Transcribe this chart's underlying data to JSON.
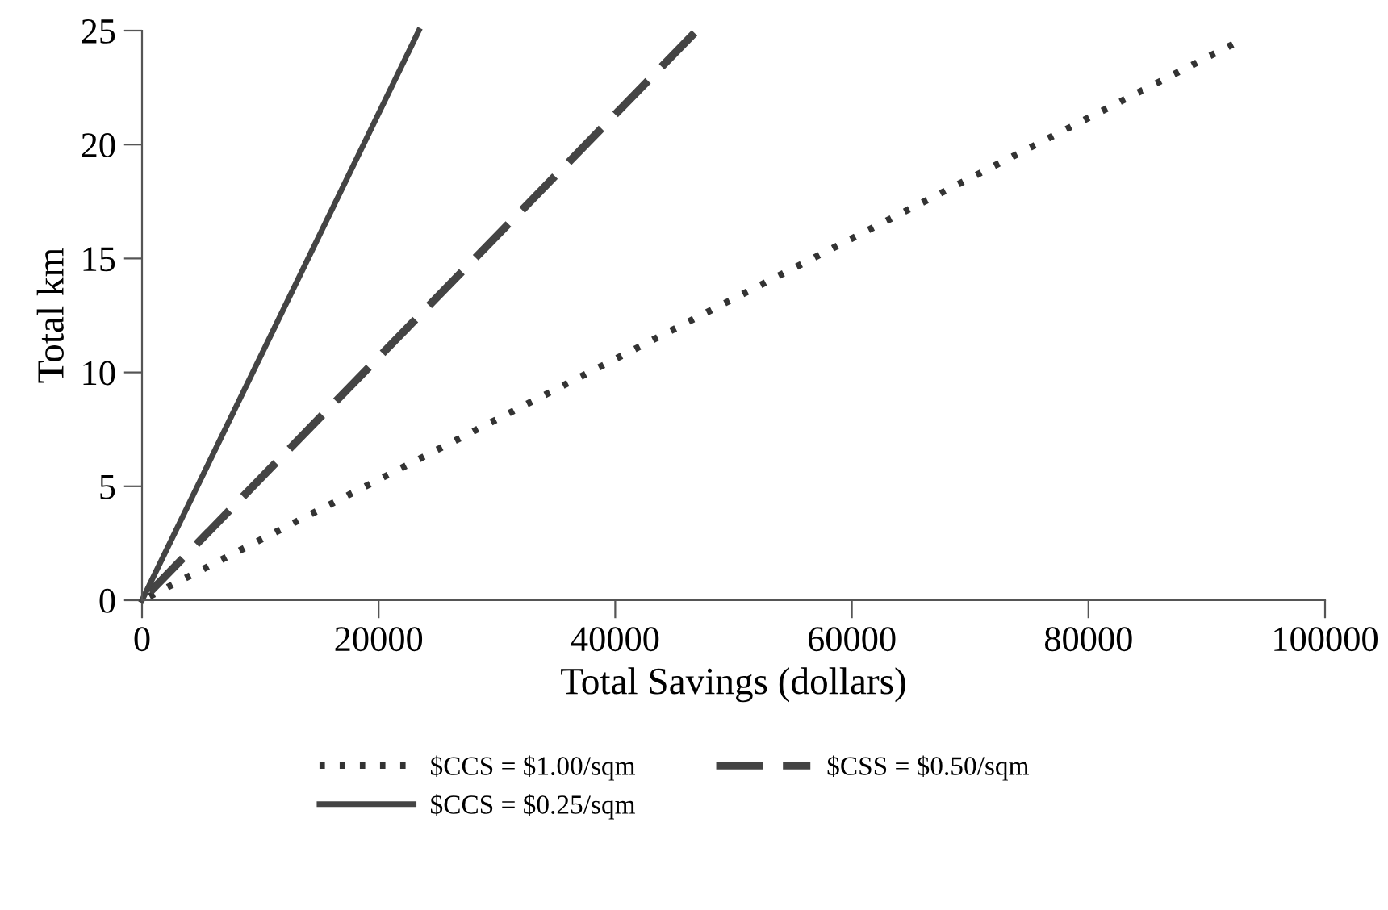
{
  "chart_data": {
    "type": "line",
    "xlabel": "Total Savings (dollars)",
    "ylabel": "Total km",
    "xlim": [
      0,
      100000
    ],
    "xticks": [
      0,
      20000,
      40000,
      60000,
      80000,
      100000
    ],
    "ylim": [
      0,
      25
    ],
    "yticks": [
      0,
      5,
      10,
      15,
      20,
      25
    ],
    "grid": false,
    "legend": "bottom",
    "marker": "none",
    "series": [
      {
        "name": "$CCS = $1.00/sqm",
        "color": "#333333",
        "line_style": "dotted",
        "x": [
          0,
          92200
        ],
        "values": [
          0,
          24.4
        ]
      },
      {
        "name": "$CSS = $0.50/sqm",
        "color": "#444444",
        "line_style": "dashed",
        "x": [
          0,
          46700
        ],
        "values": [
          0,
          24.9
        ]
      },
      {
        "name": "$CCS = $0.25/sqm",
        "color": "#444444",
        "line_style": "solid",
        "x": [
          0,
          23400
        ],
        "values": [
          0,
          25
        ]
      }
    ]
  }
}
